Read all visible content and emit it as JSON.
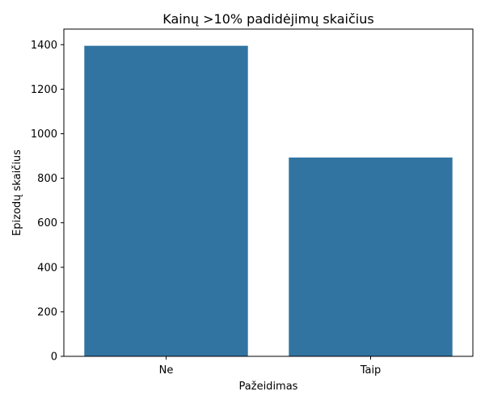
{
  "chart_data": {
    "type": "bar",
    "title": "Kainų >10% padidėjimų skaičius",
    "xlabel": "Pažeidimas",
    "ylabel": "Epizodų skaičius",
    "categories": [
      "Ne",
      "Taip"
    ],
    "values": [
      1395,
      893
    ],
    "ylim": [
      0,
      1470
    ],
    "yticks": [
      0,
      200,
      400,
      600,
      800,
      1000,
      1200,
      1400
    ],
    "grid": false,
    "bar_color": "#3274a1"
  }
}
